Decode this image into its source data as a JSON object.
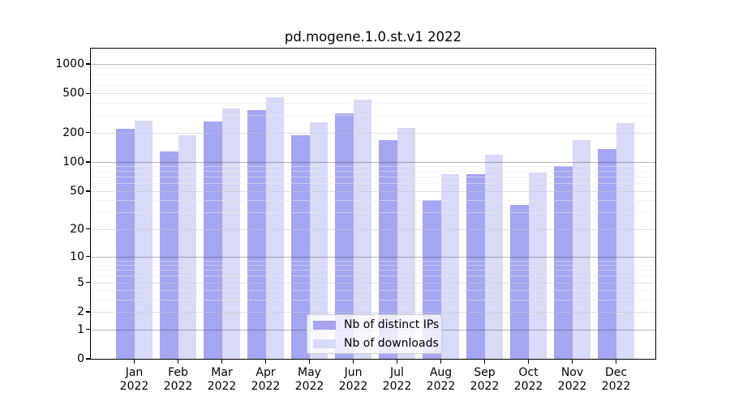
{
  "chart_data": {
    "type": "bar",
    "title": "pd.mogene.1.0.st.v1 2022",
    "x_tick_months": [
      "Jan",
      "Feb",
      "Mar",
      "Apr",
      "May",
      "Jun",
      "Jul",
      "Aug",
      "Sep",
      "Oct",
      "Nov",
      "Dec"
    ],
    "x_tick_year": "2022",
    "categories": [
      "Jan 2022",
      "Feb 2022",
      "Mar 2022",
      "Apr 2022",
      "May 2022",
      "Jun 2022",
      "Jul 2022",
      "Aug 2022",
      "Sep 2022",
      "Oct 2022",
      "Nov 2022",
      "Dec 2022"
    ],
    "series": [
      {
        "name": "Nb of distinct IPs",
        "color": "#a5a5f1",
        "values": [
          218,
          127,
          260,
          335,
          186,
          314,
          168,
          40,
          74,
          36,
          90,
          135
        ]
      },
      {
        "name": "Nb of downloads",
        "color": "#d9d9f8",
        "values": [
          265,
          186,
          350,
          460,
          255,
          435,
          224,
          75,
          119,
          77,
          168,
          250
        ]
      }
    ],
    "y_axis": {
      "scale": "symlog",
      "labeled_ticks": [
        0,
        1,
        2,
        5,
        10,
        20,
        50,
        100,
        200,
        500,
        1000
      ],
      "decade_gridlines": [
        1,
        10,
        100,
        1000
      ],
      "mid_gridlines": [
        2,
        5,
        20,
        50,
        200,
        500
      ],
      "minor_gridlines": [
        3,
        4,
        6,
        7,
        8,
        9,
        30,
        40,
        60,
        70,
        80,
        90,
        300,
        400,
        600,
        700,
        800,
        900
      ],
      "ymax": 1430
    },
    "legend": {
      "position": "lower center",
      "entries": [
        "Nb of distinct IPs",
        "Nb of downloads"
      ]
    },
    "grid": true
  }
}
